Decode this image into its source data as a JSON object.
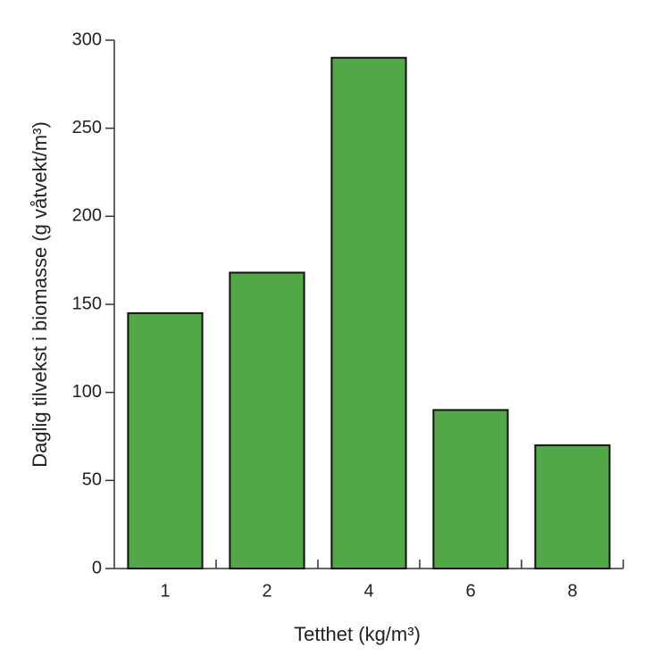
{
  "chart_data": {
    "type": "bar",
    "x_label": "Tetthet (kg/m³)",
    "y_label": "Daglig tilvekst i biomasse (g våtvekt/m³)",
    "categories": [
      "1",
      "2",
      "4",
      "6",
      "8"
    ],
    "values": [
      145,
      168,
      290,
      90,
      70
    ],
    "color": "#52a846",
    "ylim": [
      0,
      300
    ],
    "yticks": [
      0,
      50,
      100,
      150,
      200,
      250,
      300
    ],
    "grid": false
  }
}
